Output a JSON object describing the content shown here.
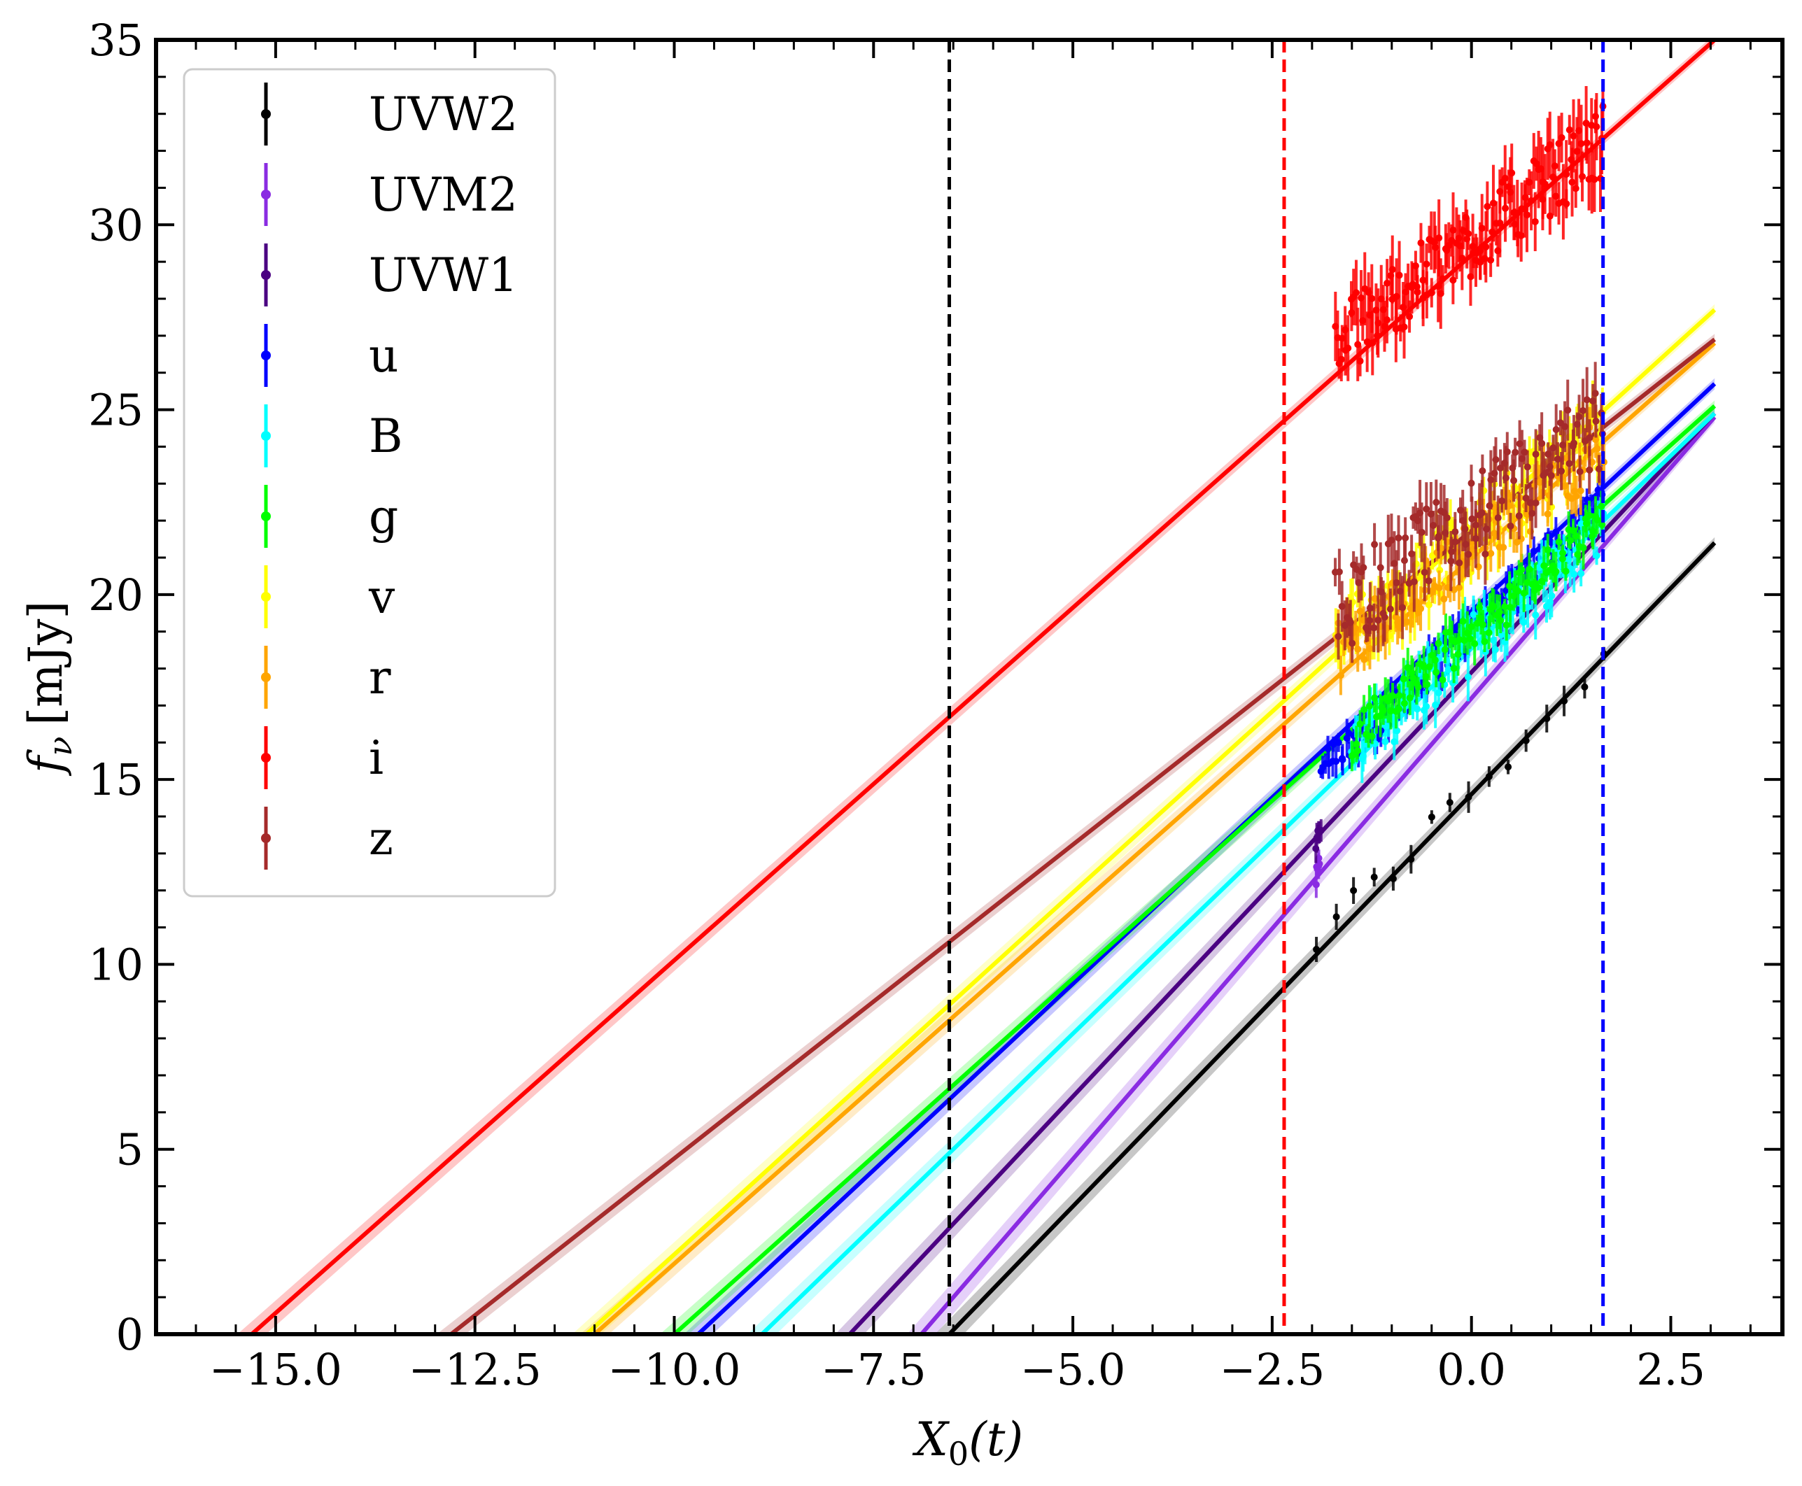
{
  "chart_data": {
    "type": "line",
    "title": "",
    "xlabel": "X_0(t)",
    "xlabel_main": "X",
    "xlabel_sub": "0",
    "xlabel_rest": "(t)",
    "ylabel": "f_nu [mJy]",
    "ylabel_main": "f",
    "ylabel_sub": "ν",
    "ylabel_rest": "[mJy]",
    "xlim": [
      -16.5,
      3.9
    ],
    "ylim": [
      0,
      35
    ],
    "xticks": [
      -15.0,
      -12.5,
      -10.0,
      -7.5,
      -5.0,
      -2.5,
      0.0,
      2.5
    ],
    "xtick_labels": [
      "−15.0",
      "−12.5",
      "−10.0",
      "−7.5",
      "−5.0",
      "−2.5",
      "0.0",
      "2.5"
    ],
    "yticks": [
      0,
      5,
      10,
      15,
      20,
      25,
      30,
      35
    ],
    "ytick_labels": [
      "0",
      "5",
      "10",
      "15",
      "20",
      "25",
      "30",
      "35"
    ],
    "legend_position": "upper-left",
    "vlines": [
      {
        "x": -6.55,
        "color": "#000000",
        "style": "dashed"
      },
      {
        "x": -2.35,
        "color": "#ff0000",
        "style": "dashed"
      },
      {
        "x": 1.65,
        "color": "#0000ff",
        "style": "dashed"
      }
    ],
    "series": [
      {
        "name": "UVW2",
        "color": "#000000",
        "line": [
          [
            -6.55,
            0
          ],
          [
            3.05,
            21.4
          ]
        ],
        "data": {
          "x0": -1.95,
          "x1": 1.65,
          "y0": 10.6,
          "y1": 18.2,
          "n": 16,
          "noise": 0.5,
          "err": 0.3
        }
      },
      {
        "name": "UVM2",
        "color": "#8a2be2",
        "line": [
          [
            -6.9,
            0
          ],
          [
            3.05,
            24.8
          ]
        ],
        "data": {
          "x0": -1.95,
          "x1": -1.9,
          "y0": 12.4,
          "y1": 13.0,
          "n": 6,
          "noise": 0.3,
          "err": 0.3
        }
      },
      {
        "name": "UVW1",
        "color": "#4b0082",
        "line": [
          [
            -7.8,
            0
          ],
          [
            3.05,
            24.9
          ]
        ],
        "data": {
          "x0": -1.95,
          "x1": -1.9,
          "y0": 13.3,
          "y1": 13.8,
          "n": 6,
          "noise": 0.3,
          "err": 0.3
        }
      },
      {
        "name": "u",
        "color": "#0000ff",
        "line": [
          [
            -9.7,
            0
          ],
          [
            3.05,
            25.7
          ]
        ],
        "data": {
          "x0": -1.9,
          "x1": 1.65,
          "y0": 15.1,
          "y1": 22.6,
          "n": 120,
          "noise": 0.55,
          "err": 0.35
        }
      },
      {
        "name": "B",
        "color": "#00ffff",
        "line": [
          [
            -8.9,
            0
          ],
          [
            3.05,
            24.9
          ]
        ],
        "data": {
          "x0": -1.5,
          "x1": 1.65,
          "y0": 15.8,
          "y1": 21.8,
          "n": 110,
          "noise": 0.8,
          "err": 0.45
        }
      },
      {
        "name": "g",
        "color": "#00ff00",
        "line": [
          [
            -10.0,
            0
          ],
          [
            3.05,
            25.1
          ]
        ],
        "data": {
          "x0": -1.5,
          "x1": 1.65,
          "y0": 16.2,
          "y1": 22.0,
          "n": 110,
          "noise": 0.6,
          "err": 0.4
        }
      },
      {
        "name": "v",
        "color": "#ffff00",
        "line": [
          [
            -11.1,
            0
          ],
          [
            3.05,
            27.7
          ]
        ],
        "data": {
          "x0": -1.7,
          "x1": 1.65,
          "y0": 18.6,
          "y1": 24.5,
          "n": 110,
          "noise": 1.0,
          "err": 0.5
        }
      },
      {
        "name": "r",
        "color": "#ffa500",
        "line": [
          [
            -11.0,
            0
          ],
          [
            3.05,
            26.8
          ]
        ],
        "data": {
          "x0": -1.7,
          "x1": 1.65,
          "y0": 18.4,
          "y1": 24.0,
          "n": 110,
          "noise": 0.8,
          "err": 0.45
        }
      },
      {
        "name": "i",
        "color": "#ff0000",
        "line": [
          [
            -15.3,
            0
          ],
          [
            3.05,
            35.0
          ]
        ],
        "data": {
          "x0": -1.7,
          "x1": 1.65,
          "y0": 26.8,
          "y1": 32.3,
          "n": 150,
          "noise": 1.0,
          "err": 0.7
        }
      },
      {
        "name": "z",
        "color": "#a52a2a",
        "line": [
          [
            -12.8,
            0
          ],
          [
            3.05,
            26.9
          ]
        ],
        "data": {
          "x0": -1.7,
          "x1": 1.65,
          "y0": 19.5,
          "y1": 24.5,
          "n": 130,
          "noise": 1.2,
          "err": 0.6
        }
      }
    ]
  }
}
